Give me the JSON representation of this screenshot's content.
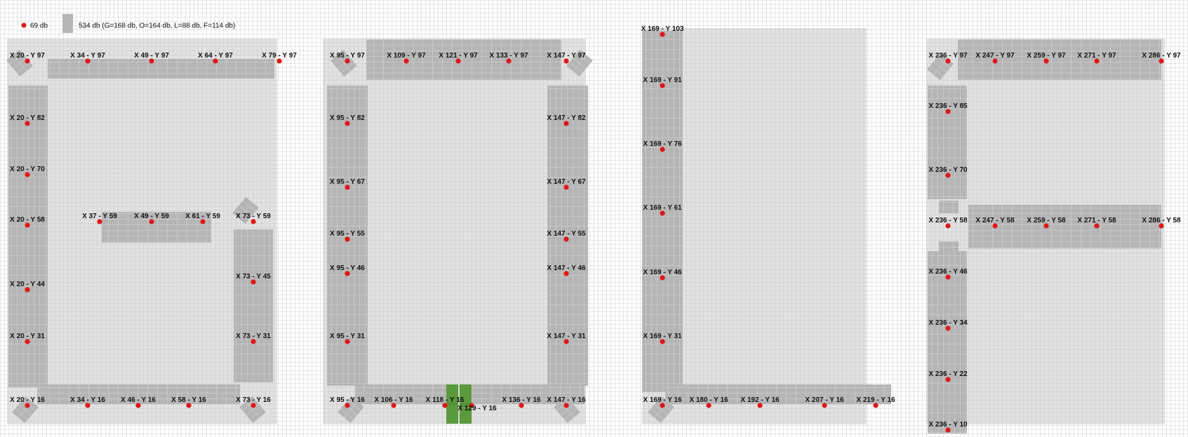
{
  "legend": {
    "point_count_text": "69 db",
    "block_count_text": "534 db (G=168 db, O=164 db, L=88 db, F=114 db)"
  },
  "colors": {
    "grid_line": "#c2c2c2",
    "area_fill": "#e2e2e2",
    "block_fill": "#b5b5b5",
    "block_line": "#d6d6d6",
    "highlight_fill": "#5a9a3c",
    "point": "#e01818"
  },
  "markers": [
    "X 20 - Y 97",
    "X 34 - Y 97",
    "X 49 - Y 97",
    "X 64 - Y 97",
    "X 79 - Y 97",
    "X 20 - Y 82",
    "X 20 - Y 70",
    "X 20 - Y 58",
    "X 20 - Y 44",
    "X 20 - Y 31",
    "X 20 - Y 16",
    "X 34 - Y 16",
    "X 46 - Y 16",
    "X 58 - Y 16",
    "X 73 - Y 16",
    "X 37 - Y 59",
    "X 49 - Y 59",
    "X 61 - Y 59",
    "X 73 - Y 59",
    "X 73 - Y 45",
    "X 73 - Y 31",
    "X 95 - Y 97",
    "X 109 - Y 97",
    "X 121 - Y 97",
    "X 133 - Y 97",
    "X 147 - Y 97",
    "X 95 - Y 82",
    "X 95 - Y 67",
    "X 95 - Y 55",
    "X 95 - Y 46",
    "X 95 - Y 31",
    "X 95 - Y 16",
    "X 147 - Y 82",
    "X 147 - Y 67",
    "X 147 - Y 55",
    "X 147 - Y 46",
    "X 147 - Y 31",
    "X 147 - Y 16",
    "X 106 - Y 16",
    "X 118 - Y 16",
    "X 129 - Y 16",
    "X 136 - Y 16",
    "X 169 - Y 103",
    "X 169 - Y 91",
    "X 169 - Y 76",
    "X 169 - Y 61",
    "X 169 - Y 46",
    "X 169 - Y 31",
    "X 169 - Y 16",
    "X 180 - Y 16",
    "X 192 - Y 16",
    "X 207 - Y 16",
    "X 219 - Y 16",
    "X 236 - Y 97",
    "X 247 - Y 97",
    "X 259 - Y 97",
    "X 271 - Y 97",
    "X 286 - Y 97",
    "X 236 - Y 85",
    "X 236 - Y 70",
    "X 236 - Y 58",
    "X 247 - Y 58",
    "X 259 - Y 58",
    "X 271 - Y 58",
    "X 286 - Y 58",
    "X 236 - Y 46",
    "X 236 - Y 34",
    "X 236 - Y 22",
    "X 236 - Y 10"
  ]
}
